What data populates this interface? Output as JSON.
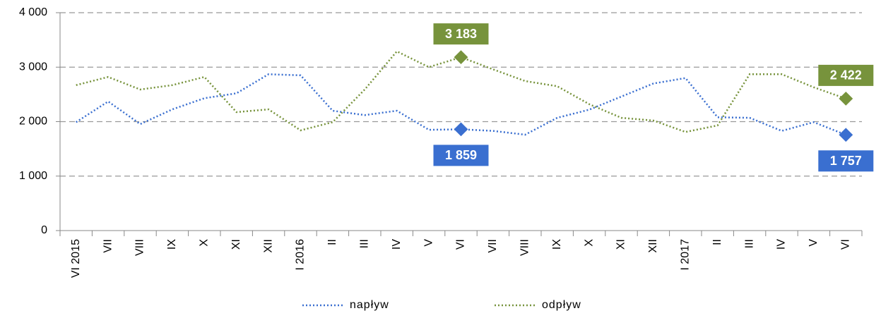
{
  "chart_data": {
    "type": "line",
    "categories": [
      "VI 2015",
      "VII",
      "VIII",
      "IX",
      "X",
      "XI",
      "XII",
      "I 2016",
      "II",
      "III",
      "IV",
      "V",
      "VI",
      "VII",
      "VIII",
      "IX",
      "X",
      "XI",
      "XII",
      "I 2017",
      "II",
      "III",
      "IV",
      "V",
      "VI"
    ],
    "series": [
      {
        "name": "napływ",
        "color": "#3a6fd0",
        "values": [
          1990,
          2370,
          1955,
          2225,
          2430,
          2520,
          2870,
          2850,
          2200,
          2120,
          2200,
          1850,
          1859,
          1830,
          1760,
          2070,
          2220,
          2460,
          2700,
          2800,
          2080,
          2070,
          1830,
          1990,
          1757
        ],
        "value_labels": [
          null,
          null,
          null,
          null,
          null,
          null,
          null,
          null,
          null,
          null,
          null,
          null,
          "1 859",
          null,
          null,
          null,
          null,
          null,
          null,
          null,
          null,
          null,
          null,
          null,
          "1 757"
        ]
      },
      {
        "name": "odpływ",
        "color": "#77933c",
        "values": [
          2670,
          2820,
          2590,
          2670,
          2820,
          2175,
          2225,
          1840,
          1990,
          2590,
          3290,
          3000,
          3183,
          2960,
          2745,
          2650,
          2320,
          2070,
          2020,
          1810,
          1930,
          2870,
          2870,
          2630,
          2422
        ],
        "value_labels": [
          null,
          null,
          null,
          null,
          null,
          null,
          null,
          null,
          null,
          null,
          null,
          null,
          "3 183",
          null,
          null,
          null,
          null,
          null,
          null,
          null,
          null,
          null,
          null,
          null,
          "2 422"
        ]
      }
    ],
    "ylim": [
      0,
      4000
    ],
    "yticks": [
      0,
      {
        "value": 1000,
        "label": "1 000"
      },
      {
        "value": 2000,
        "label": "2 000"
      },
      {
        "value": 3000,
        "label": "3 000"
      },
      {
        "value": 4000,
        "label": "4 000"
      }
    ],
    "grid": true,
    "legend": "bottom"
  }
}
